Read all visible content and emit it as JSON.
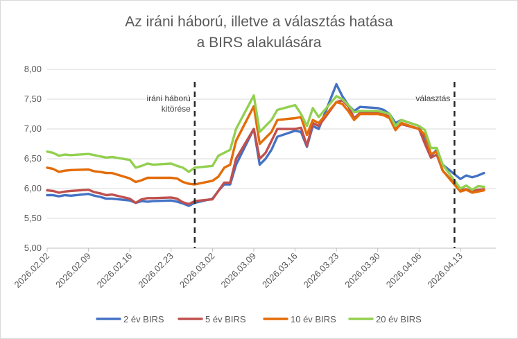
{
  "chart_data": {
    "type": "line",
    "title": "Az iráni háború, illetve a választás hatása",
    "subtitle": "a BIRS alakulására",
    "xlabel": "",
    "ylabel": "",
    "ylim": [
      5.0,
      8.0
    ],
    "yticks": [
      "5,00",
      "5,50",
      "6,00",
      "6,50",
      "7,00",
      "7,50",
      "8,00"
    ],
    "grid": "horizontal",
    "legend": "bottom",
    "x_start": "2026.02.02",
    "x_end": "2026.04.19",
    "x_tick_labels": [
      "2026.02.02",
      "2026.02.09",
      "2026.02.16",
      "2026.02.23",
      "2026.03.02",
      "2026.03.09",
      "2026.03.16",
      "2026.03.23",
      "2026.03.30",
      "2026.04.06",
      "2026.04.13"
    ],
    "x": [
      "2026.02.02",
      "2026.02.03",
      "2026.02.04",
      "2026.02.05",
      "2026.02.06",
      "2026.02.09",
      "2026.02.10",
      "2026.02.11",
      "2026.02.12",
      "2026.02.13",
      "2026.02.16",
      "2026.02.17",
      "2026.02.18",
      "2026.02.19",
      "2026.02.20",
      "2026.02.23",
      "2026.02.24",
      "2026.02.25",
      "2026.02.26",
      "2026.02.27",
      "2026.03.02",
      "2026.03.03",
      "2026.03.04",
      "2026.03.05",
      "2026.03.06",
      "2026.03.09",
      "2026.03.10",
      "2026.03.11",
      "2026.03.12",
      "2026.03.13",
      "2026.03.16",
      "2026.03.17",
      "2026.03.18",
      "2026.03.19",
      "2026.03.20",
      "2026.03.23",
      "2026.03.24",
      "2026.03.25",
      "2026.03.26",
      "2026.03.27",
      "2026.03.30",
      "2026.03.31",
      "2026.04.01",
      "2026.04.02",
      "2026.04.03",
      "2026.04.06",
      "2026.04.07",
      "2026.04.08",
      "2026.04.09",
      "2026.04.10",
      "2026.04.13",
      "2026.04.14",
      "2026.04.15",
      "2026.04.16",
      "2026.04.17"
    ],
    "series": [
      {
        "name": "2 év BIRS",
        "color": "#4472c4",
        "values": [
          5.89,
          5.89,
          5.87,
          5.89,
          5.88,
          5.91,
          5.88,
          5.86,
          5.83,
          5.83,
          5.8,
          5.76,
          5.79,
          5.78,
          5.79,
          5.8,
          5.78,
          5.75,
          5.71,
          5.76,
          5.83,
          5.96,
          6.07,
          6.07,
          6.4,
          7.0,
          6.4,
          6.5,
          6.65,
          6.87,
          6.97,
          6.95,
          6.7,
          7.05,
          7.0,
          7.75,
          7.55,
          7.4,
          7.3,
          7.37,
          7.35,
          7.32,
          7.25,
          7.1,
          7.15,
          7.05,
          6.8,
          6.55,
          6.65,
          6.4,
          6.16,
          6.22,
          6.19,
          6.22,
          6.26
        ]
      },
      {
        "name": "5 év BIRS",
        "color": "#c0504d",
        "values": [
          5.97,
          5.96,
          5.93,
          5.95,
          5.96,
          5.98,
          5.94,
          5.92,
          5.89,
          5.9,
          5.83,
          5.76,
          5.82,
          5.84,
          5.84,
          5.85,
          5.83,
          5.77,
          5.74,
          5.79,
          5.82,
          5.96,
          6.1,
          6.1,
          6.5,
          7.0,
          6.5,
          6.6,
          6.8,
          7.0,
          7.0,
          7.02,
          6.72,
          7.1,
          7.05,
          7.45,
          7.48,
          7.38,
          7.18,
          7.27,
          7.27,
          7.25,
          7.2,
          7.0,
          7.08,
          7.0,
          6.75,
          6.52,
          6.57,
          6.3,
          5.98,
          5.99,
          5.95,
          5.98,
          5.99
        ]
      },
      {
        "name": "10 év BIRS",
        "color": "#e36c09",
        "values": [
          6.35,
          6.33,
          6.28,
          6.3,
          6.31,
          6.32,
          6.29,
          6.28,
          6.26,
          6.26,
          6.17,
          6.11,
          6.14,
          6.18,
          6.18,
          6.18,
          6.17,
          6.11,
          6.08,
          6.07,
          6.13,
          6.2,
          6.35,
          6.4,
          6.8,
          7.38,
          6.75,
          6.85,
          6.95,
          7.15,
          7.18,
          7.2,
          6.9,
          7.15,
          7.1,
          7.45,
          7.42,
          7.3,
          7.15,
          7.25,
          7.25,
          7.23,
          7.18,
          6.98,
          7.1,
          7.0,
          6.9,
          6.58,
          6.62,
          6.3,
          5.95,
          5.98,
          5.93,
          5.95,
          5.97
        ]
      },
      {
        "name": "20 év BIRS",
        "color": "#92d050",
        "values": [
          6.62,
          6.6,
          6.55,
          6.57,
          6.56,
          6.58,
          6.56,
          6.54,
          6.52,
          6.53,
          6.48,
          6.35,
          6.38,
          6.42,
          6.4,
          6.42,
          6.38,
          6.35,
          6.28,
          6.35,
          6.38,
          6.55,
          6.6,
          6.65,
          7.0,
          7.56,
          6.95,
          7.05,
          7.15,
          7.32,
          7.4,
          7.25,
          7.05,
          7.35,
          7.2,
          7.55,
          7.5,
          7.4,
          7.28,
          7.3,
          7.3,
          7.28,
          7.25,
          7.05,
          7.15,
          7.05,
          6.98,
          6.68,
          6.68,
          6.4,
          6.0,
          6.05,
          5.98,
          6.04,
          6.03
        ]
      }
    ],
    "annotations": [
      {
        "date": "2026.02.27",
        "lines": [
          "iráni háború",
          "kitörése"
        ]
      },
      {
        "date": "2026.04.12",
        "lines": [
          "választás"
        ]
      }
    ]
  }
}
